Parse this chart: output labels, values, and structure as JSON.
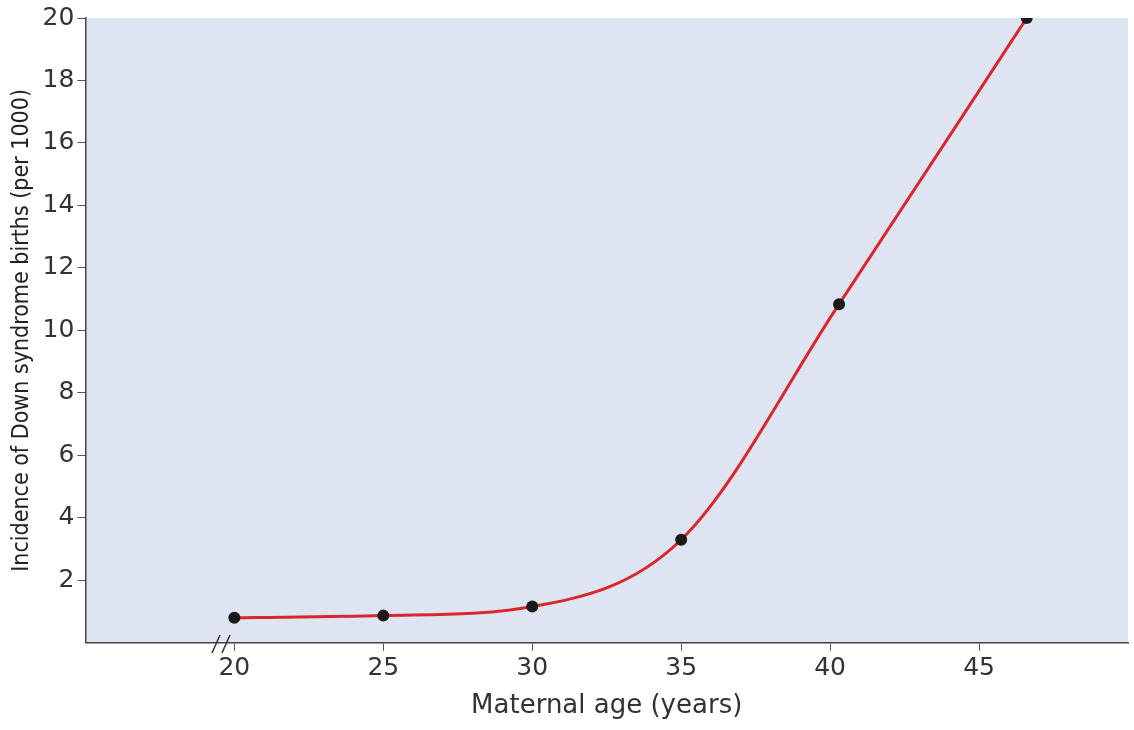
{
  "chart_data": {
    "type": "line",
    "xlabel": "Maternal age (years)",
    "ylabel": "Incidence of Down syndrome births (per 1000)",
    "x": [
      20,
      25,
      30,
      35,
      40.3,
      46.6
    ],
    "series": [
      {
        "color": "#d9262b",
        "values": [
          0.8,
          0.87,
          1.16,
          3.3,
          10.84,
          20
        ]
      }
    ],
    "xlim": [
      15,
      50
    ],
    "xticks": [
      20,
      25,
      30,
      35,
      40,
      45
    ],
    "ylim": [
      0,
      20
    ],
    "yticks": [
      2,
      4,
      6,
      8,
      10,
      12,
      14,
      16,
      18,
      20
    ],
    "grid": false,
    "legend": false,
    "marker": "circle",
    "line_style": "solid"
  }
}
